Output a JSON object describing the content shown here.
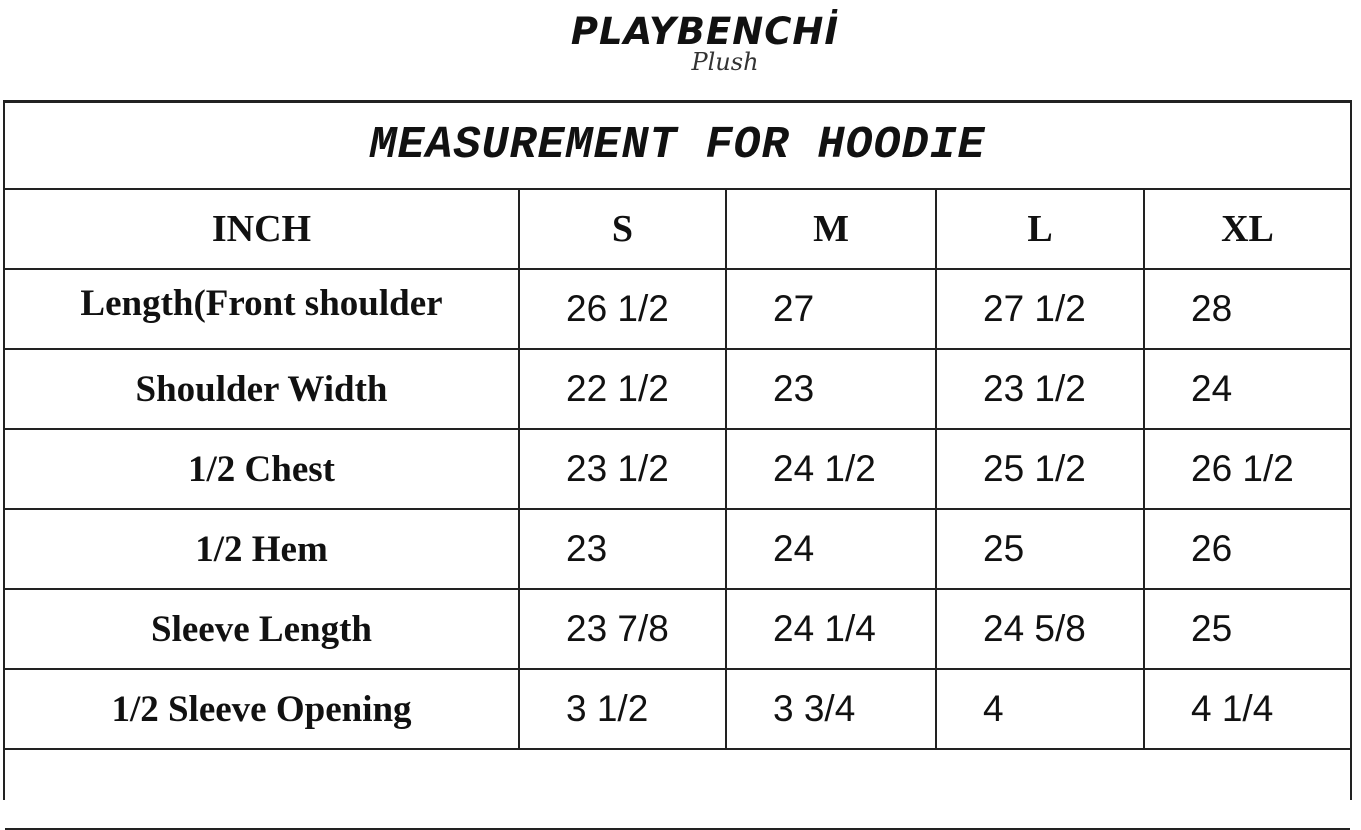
{
  "logo": {
    "brand": "PLAYBENCHİ",
    "script": "Plush"
  },
  "title": "MEASUREMENT FOR HOODIE",
  "headers": [
    "INCH",
    "S",
    "M",
    "L",
    "XL"
  ],
  "rows": [
    {
      "label": "Length(Front shoulder",
      "values": [
        "26 1/2",
        "27",
        "27 1/2",
        "28"
      ]
    },
    {
      "label": "Shoulder Width",
      "values": [
        "22 1/2",
        "23",
        "23 1/2",
        "24"
      ]
    },
    {
      "label": "1/2 Chest",
      "values": [
        "23 1/2",
        "24 1/2",
        "25 1/2",
        "26 1/2"
      ]
    },
    {
      "label": "1/2 Hem",
      "values": [
        "23",
        "24",
        "25",
        "26"
      ]
    },
    {
      "label": "Sleeve Length",
      "values": [
        "23 7/8",
        "24 1/4",
        "24 5/8",
        "25"
      ]
    },
    {
      "label": "1/2 Sleeve Opening",
      "values": [
        "3 1/2",
        "3 3/4",
        "4",
        "4 1/4"
      ]
    }
  ]
}
